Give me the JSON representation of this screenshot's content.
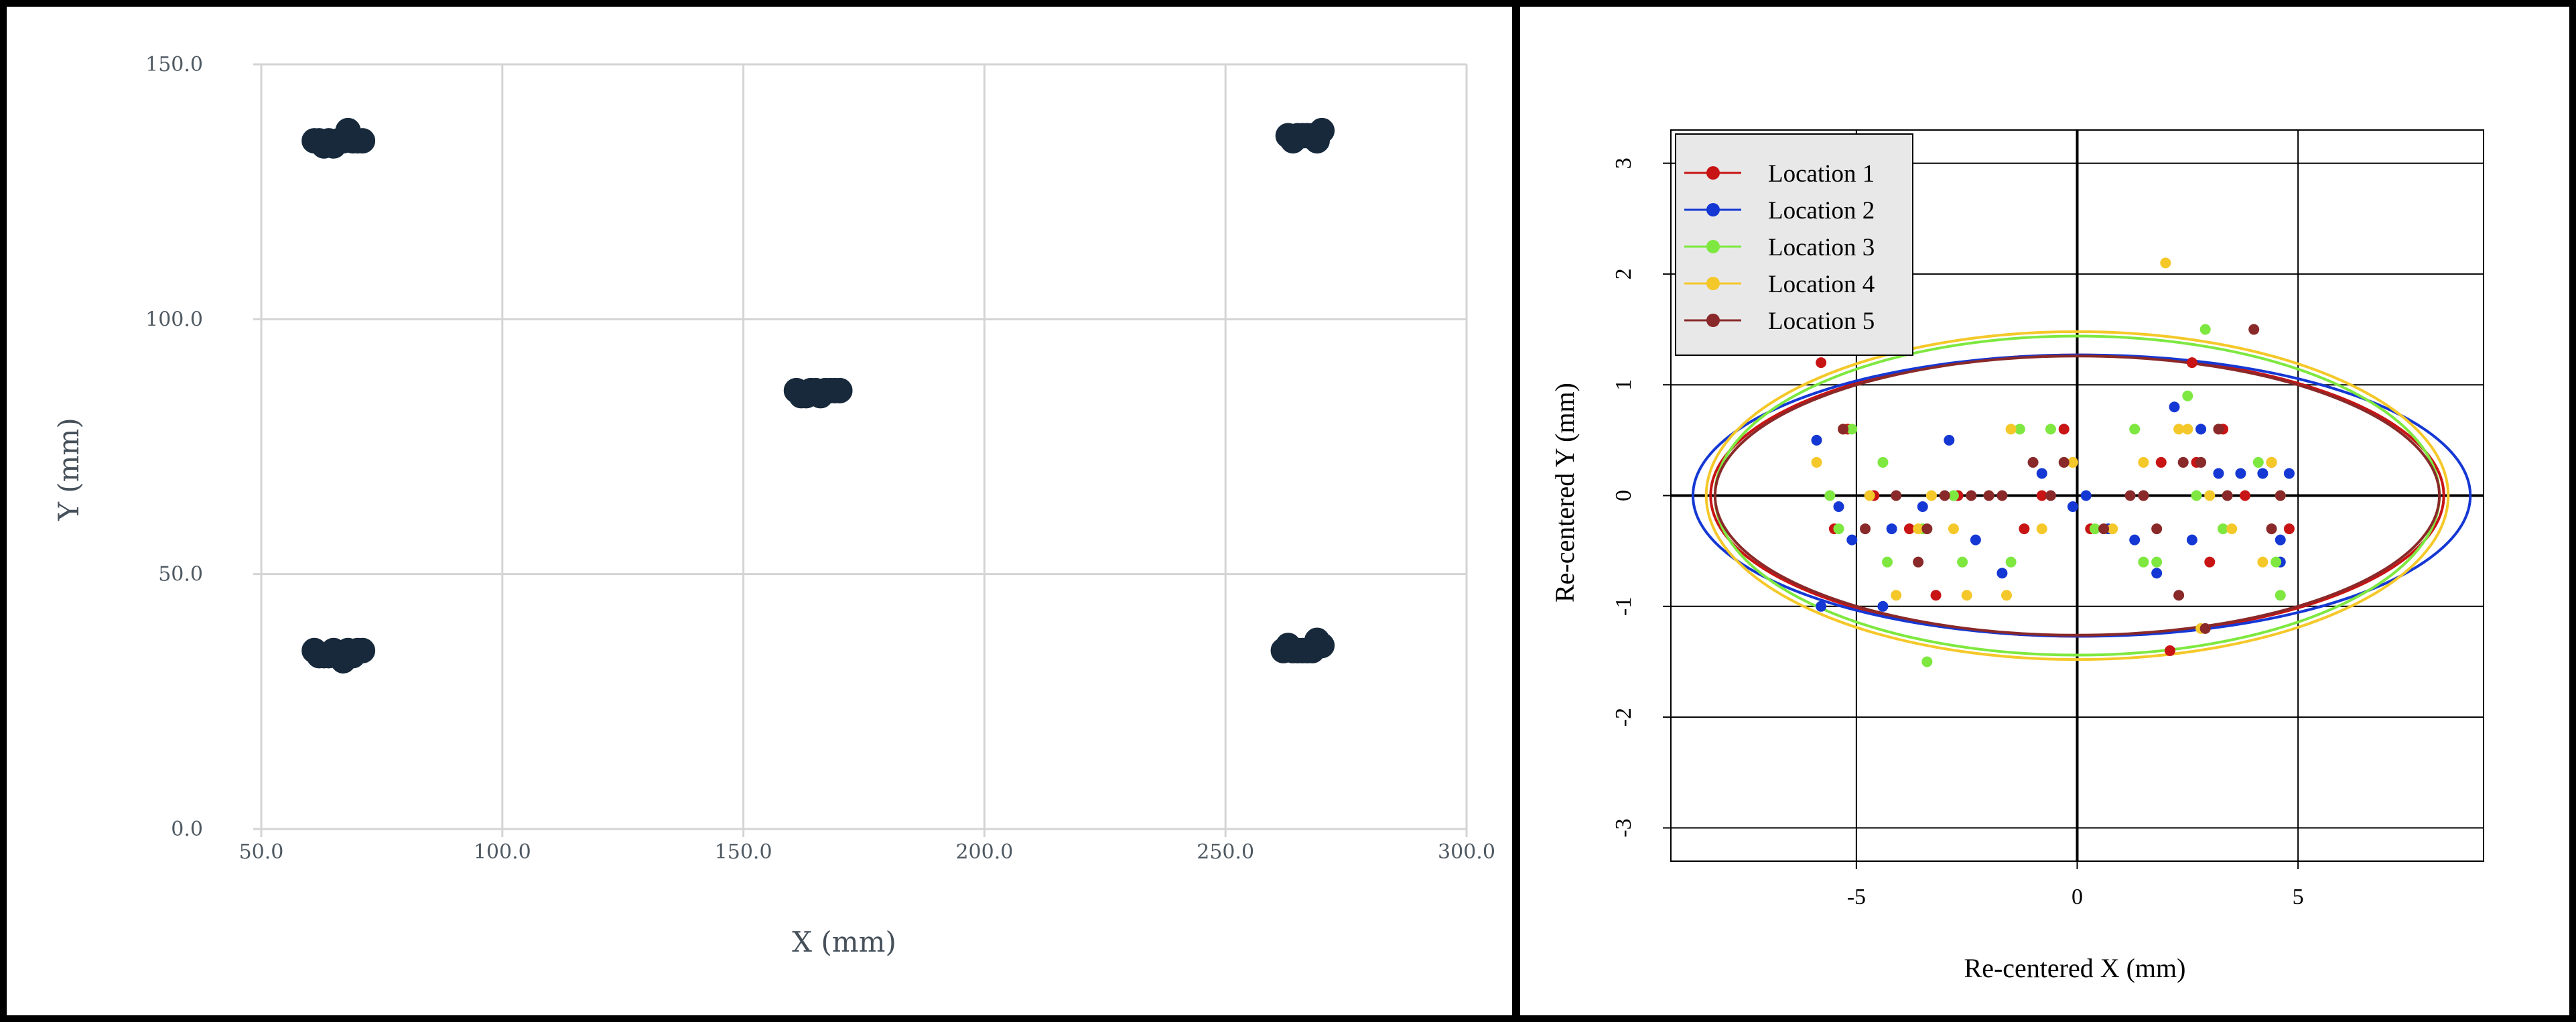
{
  "chart_data": [
    {
      "type": "scatter",
      "title": "",
      "xlabel": "X (mm)",
      "ylabel": "Y (mm)",
      "xlim": [
        50,
        300
      ],
      "ylim": [
        0,
        150
      ],
      "grid": true,
      "x_ticks": [
        "50.0",
        "100.0",
        "150.0",
        "200.0",
        "250.0",
        "300.0"
      ],
      "y_ticks": [
        "0.0",
        "50.0",
        "100.0",
        "150.0"
      ],
      "colors": {
        "points": "#17293b",
        "grid": "#d4d4d4",
        "text": "#4f5962"
      },
      "series": [
        {
          "x": [
            61,
            63,
            64,
            66,
            67,
            68,
            69,
            71,
            62,
            65,
            70,
            263,
            265,
            266,
            268,
            269,
            270,
            264,
            267,
            161,
            163,
            164,
            166,
            167,
            168,
            169,
            170,
            162,
            165,
            61,
            63,
            64,
            65,
            67,
            68,
            69,
            71,
            62,
            66,
            70,
            262,
            263,
            265,
            266,
            268,
            269,
            270,
            264,
            267
          ],
          "y": [
            135,
            134,
            135,
            135,
            135,
            137,
            135,
            135,
            135,
            134,
            135,
            136,
            136,
            136,
            136,
            135,
            137,
            135,
            136,
            86,
            85,
            86,
            85,
            86,
            86,
            86,
            86,
            85,
            86,
            35,
            34,
            34,
            35,
            33,
            35,
            34,
            35,
            34,
            34,
            35,
            35,
            36,
            35,
            35,
            35,
            37,
            36,
            35,
            35
          ]
        }
      ]
    },
    {
      "type": "scatter",
      "title": "",
      "xlabel": "Re-centered X (mm)",
      "ylabel": "Re-centered Y (mm)",
      "xlim": [
        -9.2,
        9.2
      ],
      "ylim": [
        -3.3,
        3.3
      ],
      "grid": true,
      "legend_position": "top-left",
      "x_ticks": [
        "-5",
        "0",
        "5"
      ],
      "y_ticks": [
        "-3",
        "-2",
        "-1",
        "0",
        "1",
        "2",
        "3"
      ],
      "x_tick_values": [
        -5,
        0,
        5
      ],
      "y_tick_values": [
        -3,
        -2,
        -1,
        0,
        1,
        2,
        3
      ],
      "series": [
        {
          "name": "Location 1",
          "color": "#c81414",
          "x": [
            -5.8,
            -5.2,
            -4.6,
            -3.8,
            -3.2,
            -0.3,
            0.3,
            1.5,
            2.1,
            2.7,
            3.3,
            3.8,
            4.4,
            -2.7,
            -1.2,
            -0.8,
            1.9,
            3.0,
            2.6,
            4.8,
            -5.5
          ],
          "y": [
            1.2,
            0.6,
            0.0,
            -0.3,
            -0.9,
            0.6,
            -0.3,
            0.0,
            -1.4,
            0.3,
            0.6,
            0.0,
            0.3,
            0.0,
            -0.3,
            0.0,
            0.3,
            -0.6,
            1.2,
            -0.3,
            -0.3
          ],
          "ellipse": {
            "rx": 8.3,
            "ry": 1.27,
            "cx": 0.0,
            "cy": 0.0
          }
        },
        {
          "name": "Location 2",
          "color": "#1538d4",
          "x": [
            -5.9,
            -5.4,
            -5.1,
            -4.4,
            -3.5,
            -2.9,
            -2.3,
            -1.7,
            -0.8,
            -0.1,
            0.7,
            1.3,
            1.8,
            2.2,
            2.6,
            3.2,
            3.7,
            4.2,
            4.6,
            4.8,
            -5.8,
            -4.2,
            2.8,
            4.6,
            0.2
          ],
          "y": [
            0.5,
            -0.1,
            -0.4,
            -1.0,
            -0.1,
            0.5,
            -0.4,
            -0.7,
            0.2,
            -0.1,
            -0.3,
            -0.4,
            -0.7,
            0.8,
            -0.4,
            0.2,
            0.2,
            0.2,
            -0.4,
            0.2,
            -1.0,
            -0.3,
            0.6,
            -0.6,
            0.0
          ],
          "ellipse": {
            "rx": 8.8,
            "ry": 1.27,
            "cx": 0.1,
            "cy": 0.0
          }
        },
        {
          "name": "Location 3",
          "color": "#7ee840",
          "x": [
            -5.6,
            -5.1,
            -4.3,
            -3.5,
            -2.6,
            -1.5,
            -0.6,
            1.3,
            1.8,
            2.5,
            2.9,
            3.4,
            4.1,
            4.5,
            -4.4,
            -1.3,
            1.5,
            2.7,
            -3.4,
            -2.8,
            0.4,
            3.3,
            4.6,
            -5.4
          ],
          "y": [
            0.0,
            0.6,
            -0.6,
            -0.3,
            -0.6,
            -0.6,
            0.6,
            0.6,
            -0.6,
            0.9,
            1.5,
            0.0,
            0.3,
            -0.6,
            0.3,
            0.6,
            -0.6,
            0.0,
            -1.5,
            0.0,
            -0.3,
            -0.3,
            -0.9,
            -0.3
          ],
          "ellipse": {
            "rx": 8.2,
            "ry": 1.44,
            "cx": 0.0,
            "cy": 0.0
          }
        },
        {
          "name": "Location 4",
          "color": "#f5c82a",
          "x": [
            -5.9,
            -5.3,
            -4.7,
            -4.1,
            -3.3,
            -2.8,
            -2.0,
            -1.5,
            -0.8,
            -0.1,
            0.8,
            1.5,
            2.0,
            2.5,
            3.0,
            3.5,
            4.2,
            4.6,
            -3.6,
            -1.6,
            2.3,
            2.8,
            4.4,
            -2.5
          ],
          "y": [
            0.3,
            0.6,
            0.0,
            -0.9,
            0.0,
            -0.3,
            0.0,
            0.6,
            -0.3,
            0.3,
            -0.3,
            0.3,
            2.1,
            0.6,
            0.0,
            -0.3,
            -0.6,
            0.0,
            -0.3,
            -0.9,
            0.6,
            -1.2,
            0.3,
            -0.9
          ],
          "ellipse": {
            "rx": 8.4,
            "ry": 1.48,
            "cx": 0.0,
            "cy": 0.0
          }
        },
        {
          "name": "Location 5",
          "color": "#8a2929",
          "x": [
            -5.3,
            -4.8,
            -4.1,
            -3.6,
            -3.0,
            -2.4,
            -1.7,
            -1.0,
            -0.6,
            0.6,
            1.2,
            1.8,
            2.3,
            2.8,
            3.4,
            4.0,
            4.6,
            -3.4,
            -0.3,
            1.5,
            2.4,
            3.2,
            4.4,
            2.9,
            -2.0
          ],
          "y": [
            0.6,
            -0.3,
            0.0,
            -0.6,
            0.0,
            0.0,
            0.0,
            0.3,
            0.0,
            -0.3,
            0.0,
            -0.3,
            -0.9,
            0.3,
            0.0,
            1.5,
            0.0,
            -0.3,
            0.3,
            0.0,
            0.3,
            0.6,
            -0.3,
            -1.2,
            0.0
          ],
          "ellipse": {
            "rx": 8.2,
            "ry": 1.26,
            "cx": 0.0,
            "cy": 0.0
          }
        }
      ]
    }
  ]
}
